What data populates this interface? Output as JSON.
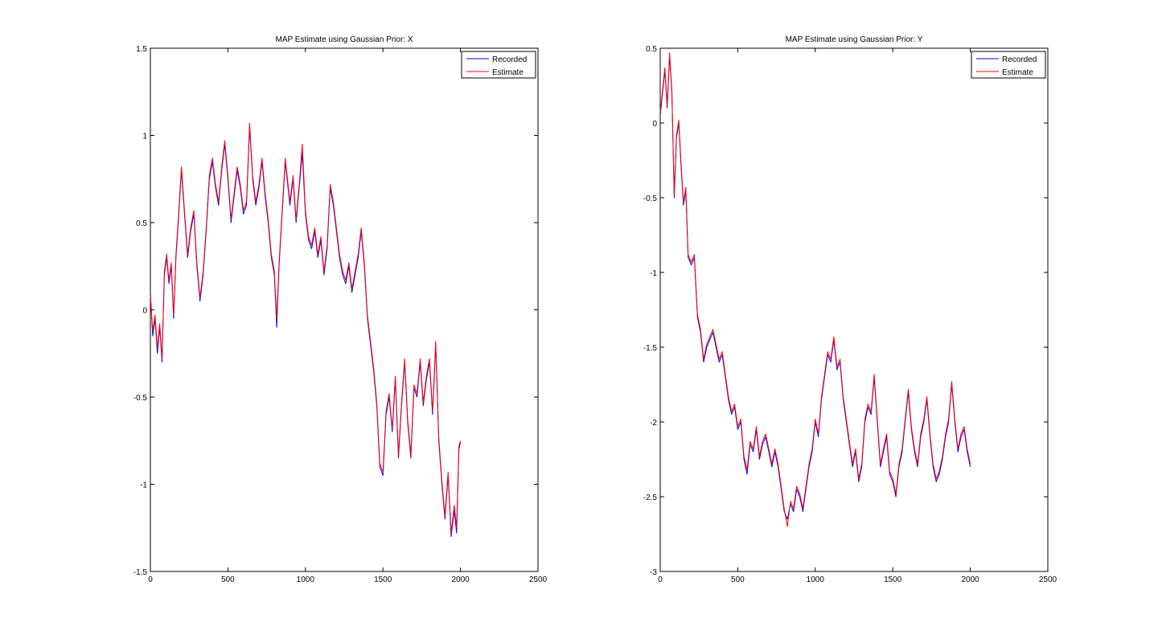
{
  "chart_data": [
    {
      "type": "line",
      "title": "MAP Estimate using Gaussian Prior: X",
      "xlabel": "",
      "ylabel": "",
      "xlim": [
        0,
        2500
      ],
      "ylim": [
        -1.5,
        1.5
      ],
      "xticks": [
        "0",
        "500",
        "1000",
        "1500",
        "2000",
        "2500"
      ],
      "yticks": [
        "-1.5",
        "-1",
        "-0.5",
        "0",
        "0.5",
        "1",
        "1.5"
      ],
      "legend": "top-right",
      "grid": false,
      "series": [
        {
          "name": "Recorded",
          "color": "#0000ff",
          "x": [
            0,
            15,
            30,
            45,
            60,
            75,
            90,
            105,
            120,
            135,
            150,
            165,
            180,
            200,
            220,
            240,
            260,
            280,
            300,
            320,
            340,
            360,
            380,
            400,
            420,
            440,
            460,
            480,
            500,
            520,
            540,
            560,
            580,
            600,
            620,
            640,
            660,
            680,
            700,
            720,
            740,
            760,
            780,
            800,
            815,
            830,
            850,
            870,
            900,
            920,
            940,
            960,
            980,
            1000,
            1020,
            1040,
            1060,
            1080,
            1100,
            1120,
            1140,
            1160,
            1180,
            1200,
            1220,
            1240,
            1260,
            1280,
            1300,
            1320,
            1340,
            1360,
            1380,
            1400,
            1420,
            1440,
            1460,
            1480,
            1500,
            1520,
            1540,
            1560,
            1580,
            1600,
            1620,
            1640,
            1660,
            1680,
            1700,
            1720,
            1740,
            1760,
            1780,
            1800,
            1820,
            1840,
            1860,
            1880,
            1900,
            1920,
            1940,
            1960,
            1975,
            1990,
            2000
          ],
          "y": [
            0.1,
            -0.15,
            -0.05,
            -0.25,
            -0.1,
            -0.3,
            0.2,
            0.3,
            0.15,
            0.25,
            -0.05,
            0.3,
            0.5,
            0.8,
            0.55,
            0.3,
            0.45,
            0.55,
            0.25,
            0.05,
            0.2,
            0.45,
            0.75,
            0.85,
            0.7,
            0.6,
            0.8,
            0.95,
            0.75,
            0.5,
            0.65,
            0.8,
            0.7,
            0.55,
            0.6,
            1.05,
            0.75,
            0.6,
            0.7,
            0.85,
            0.65,
            0.5,
            0.3,
            0.2,
            -0.1,
            0.25,
            0.55,
            0.85,
            0.6,
            0.75,
            0.5,
            0.7,
            0.9,
            0.55,
            0.4,
            0.35,
            0.45,
            0.3,
            0.4,
            0.2,
            0.35,
            0.7,
            0.6,
            0.45,
            0.3,
            0.2,
            0.15,
            0.25,
            0.1,
            0.2,
            0.3,
            0.45,
            0.25,
            -0.05,
            -0.2,
            -0.35,
            -0.55,
            -0.9,
            -0.95,
            -0.6,
            -0.5,
            -0.7,
            -0.4,
            -0.85,
            -0.55,
            -0.3,
            -0.65,
            -0.85,
            -0.45,
            -0.5,
            -0.3,
            -0.55,
            -0.4,
            -0.3,
            -0.6,
            -0.2,
            -0.75,
            -1.0,
            -1.2,
            -0.95,
            -1.3,
            -1.15,
            -1.28,
            -0.8,
            -0.76
          ]
        },
        {
          "name": "Estimate",
          "color": "#ff0000",
          "x": [
            0,
            15,
            30,
            45,
            60,
            75,
            90,
            105,
            120,
            135,
            150,
            165,
            180,
            200,
            220,
            240,
            260,
            280,
            300,
            320,
            340,
            360,
            380,
            400,
            420,
            440,
            460,
            480,
            500,
            520,
            540,
            560,
            580,
            600,
            620,
            640,
            660,
            680,
            700,
            720,
            740,
            760,
            780,
            800,
            815,
            830,
            850,
            870,
            900,
            920,
            940,
            960,
            980,
            1000,
            1020,
            1040,
            1060,
            1080,
            1100,
            1120,
            1140,
            1160,
            1180,
            1200,
            1220,
            1240,
            1260,
            1280,
            1300,
            1320,
            1340,
            1360,
            1380,
            1400,
            1420,
            1440,
            1460,
            1480,
            1500,
            1520,
            1540,
            1560,
            1580,
            1600,
            1620,
            1640,
            1660,
            1680,
            1700,
            1720,
            1740,
            1760,
            1780,
            1800,
            1820,
            1840,
            1860,
            1880,
            1900,
            1920,
            1940,
            1960,
            1975,
            1990,
            2000
          ],
          "y": [
            0.08,
            -0.12,
            -0.03,
            -0.22,
            -0.08,
            -0.28,
            0.22,
            0.32,
            0.17,
            0.27,
            -0.03,
            0.32,
            0.52,
            0.82,
            0.57,
            0.32,
            0.47,
            0.57,
            0.27,
            0.07,
            0.22,
            0.47,
            0.77,
            0.87,
            0.72,
            0.62,
            0.82,
            0.97,
            0.77,
            0.52,
            0.67,
            0.82,
            0.72,
            0.57,
            0.62,
            1.07,
            0.77,
            0.62,
            0.72,
            0.87,
            0.67,
            0.52,
            0.32,
            0.22,
            -0.05,
            0.27,
            0.57,
            0.87,
            0.62,
            0.77,
            0.52,
            0.72,
            0.95,
            0.57,
            0.42,
            0.37,
            0.47,
            0.32,
            0.42,
            0.22,
            0.37,
            0.72,
            0.62,
            0.47,
            0.32,
            0.22,
            0.17,
            0.27,
            0.12,
            0.22,
            0.32,
            0.47,
            0.27,
            -0.03,
            -0.18,
            -0.33,
            -0.53,
            -0.88,
            -0.93,
            -0.58,
            -0.48,
            -0.68,
            -0.38,
            -0.83,
            -0.53,
            -0.28,
            -0.63,
            -0.83,
            -0.43,
            -0.48,
            -0.28,
            -0.53,
            -0.38,
            -0.28,
            -0.58,
            -0.18,
            -0.73,
            -0.98,
            -1.18,
            -0.93,
            -1.28,
            -1.12,
            -1.25,
            -0.78,
            -0.75
          ]
        }
      ]
    },
    {
      "type": "line",
      "title": "MAP Estimate using Gaussian Prior: Y",
      "xlabel": "",
      "ylabel": "",
      "xlim": [
        0,
        2500
      ],
      "ylim": [
        -3,
        0.5
      ],
      "xticks": [
        "0",
        "500",
        "1000",
        "1500",
        "2000",
        "2500"
      ],
      "yticks": [
        "-3",
        "-2.5",
        "-2",
        "-1.5",
        "-1",
        "-0.5",
        "0",
        "0.5"
      ],
      "legend": "top-right",
      "grid": false,
      "series": [
        {
          "name": "Recorded",
          "color": "#0000ff",
          "x": [
            0,
            15,
            30,
            45,
            60,
            75,
            90,
            105,
            120,
            135,
            150,
            165,
            180,
            200,
            220,
            240,
            260,
            280,
            300,
            320,
            340,
            360,
            380,
            400,
            420,
            440,
            460,
            480,
            500,
            520,
            540,
            560,
            580,
            600,
            620,
            640,
            660,
            680,
            700,
            720,
            740,
            760,
            780,
            800,
            820,
            840,
            860,
            880,
            900,
            920,
            940,
            960,
            980,
            1000,
            1020,
            1040,
            1060,
            1080,
            1100,
            1120,
            1140,
            1160,
            1180,
            1200,
            1220,
            1240,
            1260,
            1280,
            1300,
            1320,
            1340,
            1360,
            1380,
            1400,
            1420,
            1440,
            1460,
            1480,
            1500,
            1520,
            1540,
            1560,
            1580,
            1600,
            1620,
            1640,
            1660,
            1680,
            1700,
            1720,
            1740,
            1760,
            1780,
            1800,
            1820,
            1840,
            1860,
            1880,
            1900,
            1920,
            1940,
            1960,
            1980,
            2000
          ],
          "y": [
            0.05,
            0.2,
            0.35,
            0.1,
            0.45,
            0.2,
            -0.5,
            -0.1,
            0.0,
            -0.3,
            -0.55,
            -0.45,
            -0.9,
            -0.95,
            -0.9,
            -1.3,
            -1.4,
            -1.6,
            -1.5,
            -1.45,
            -1.4,
            -1.5,
            -1.6,
            -1.55,
            -1.7,
            -1.85,
            -1.95,
            -1.9,
            -2.05,
            -2.0,
            -2.25,
            -2.35,
            -2.15,
            -2.2,
            -2.05,
            -2.25,
            -2.15,
            -2.1,
            -2.2,
            -2.3,
            -2.2,
            -2.3,
            -2.45,
            -2.6,
            -2.65,
            -2.55,
            -2.6,
            -2.45,
            -2.5,
            -2.6,
            -2.45,
            -2.3,
            -2.2,
            -2.0,
            -2.1,
            -1.85,
            -1.7,
            -1.55,
            -1.6,
            -1.45,
            -1.65,
            -1.6,
            -1.85,
            -2.0,
            -2.15,
            -2.3,
            -2.2,
            -2.4,
            -2.3,
            -2.0,
            -1.9,
            -1.95,
            -1.7,
            -2.0,
            -2.3,
            -2.2,
            -2.1,
            -2.35,
            -2.4,
            -2.5,
            -2.3,
            -2.2,
            -2.0,
            -1.8,
            -2.05,
            -2.2,
            -2.3,
            -2.1,
            -2.0,
            -1.85,
            -2.1,
            -2.3,
            -2.4,
            -2.35,
            -2.25,
            -2.1,
            -2.0,
            -1.75,
            -2.0,
            -2.2,
            -2.1,
            -2.05,
            -2.2,
            -2.3
          ]
        },
        {
          "name": "Estimate",
          "color": "#ff0000",
          "x": [
            0,
            15,
            30,
            45,
            60,
            75,
            90,
            105,
            120,
            135,
            150,
            165,
            180,
            200,
            220,
            240,
            260,
            280,
            300,
            320,
            340,
            360,
            380,
            400,
            420,
            440,
            460,
            480,
            500,
            520,
            540,
            560,
            580,
            600,
            620,
            640,
            660,
            680,
            700,
            720,
            740,
            760,
            780,
            800,
            820,
            840,
            860,
            880,
            900,
            920,
            940,
            960,
            980,
            1000,
            1020,
            1040,
            1060,
            1080,
            1100,
            1120,
            1140,
            1160,
            1180,
            1200,
            1220,
            1240,
            1260,
            1280,
            1300,
            1320,
            1340,
            1360,
            1380,
            1400,
            1420,
            1440,
            1460,
            1480,
            1500,
            1520,
            1540,
            1560,
            1580,
            1600,
            1620,
            1640,
            1660,
            1680,
            1700,
            1720,
            1740,
            1760,
            1780,
            1800,
            1820,
            1840,
            1860,
            1880,
            1900,
            1920,
            1940,
            1960,
            1980,
            2000
          ],
          "y": [
            0.07,
            0.22,
            0.37,
            0.12,
            0.47,
            0.22,
            -0.48,
            -0.08,
            0.02,
            -0.28,
            -0.53,
            -0.43,
            -0.88,
            -0.93,
            -0.88,
            -1.28,
            -1.38,
            -1.58,
            -1.48,
            -1.43,
            -1.38,
            -1.48,
            -1.58,
            -1.53,
            -1.68,
            -1.83,
            -1.93,
            -1.88,
            -2.03,
            -1.98,
            -2.23,
            -2.32,
            -2.13,
            -2.18,
            -2.03,
            -2.23,
            -2.13,
            -2.08,
            -2.18,
            -2.28,
            -2.18,
            -2.28,
            -2.43,
            -2.58,
            -2.7,
            -2.53,
            -2.58,
            -2.43,
            -2.48,
            -2.58,
            -2.43,
            -2.28,
            -2.18,
            -1.98,
            -2.08,
            -1.83,
            -1.68,
            -1.53,
            -1.58,
            -1.43,
            -1.63,
            -1.58,
            -1.83,
            -1.98,
            -2.13,
            -2.28,
            -2.18,
            -2.38,
            -2.28,
            -1.98,
            -1.88,
            -1.93,
            -1.68,
            -1.98,
            -2.28,
            -2.18,
            -2.08,
            -2.33,
            -2.38,
            -2.48,
            -2.28,
            -2.18,
            -1.98,
            -1.78,
            -2.03,
            -2.18,
            -2.28,
            -2.08,
            -1.98,
            -1.83,
            -2.08,
            -2.28,
            -2.38,
            -2.33,
            -2.23,
            -2.08,
            -1.98,
            -1.73,
            -1.98,
            -2.18,
            -2.08,
            -2.03,
            -2.18,
            -2.28
          ]
        }
      ]
    }
  ]
}
